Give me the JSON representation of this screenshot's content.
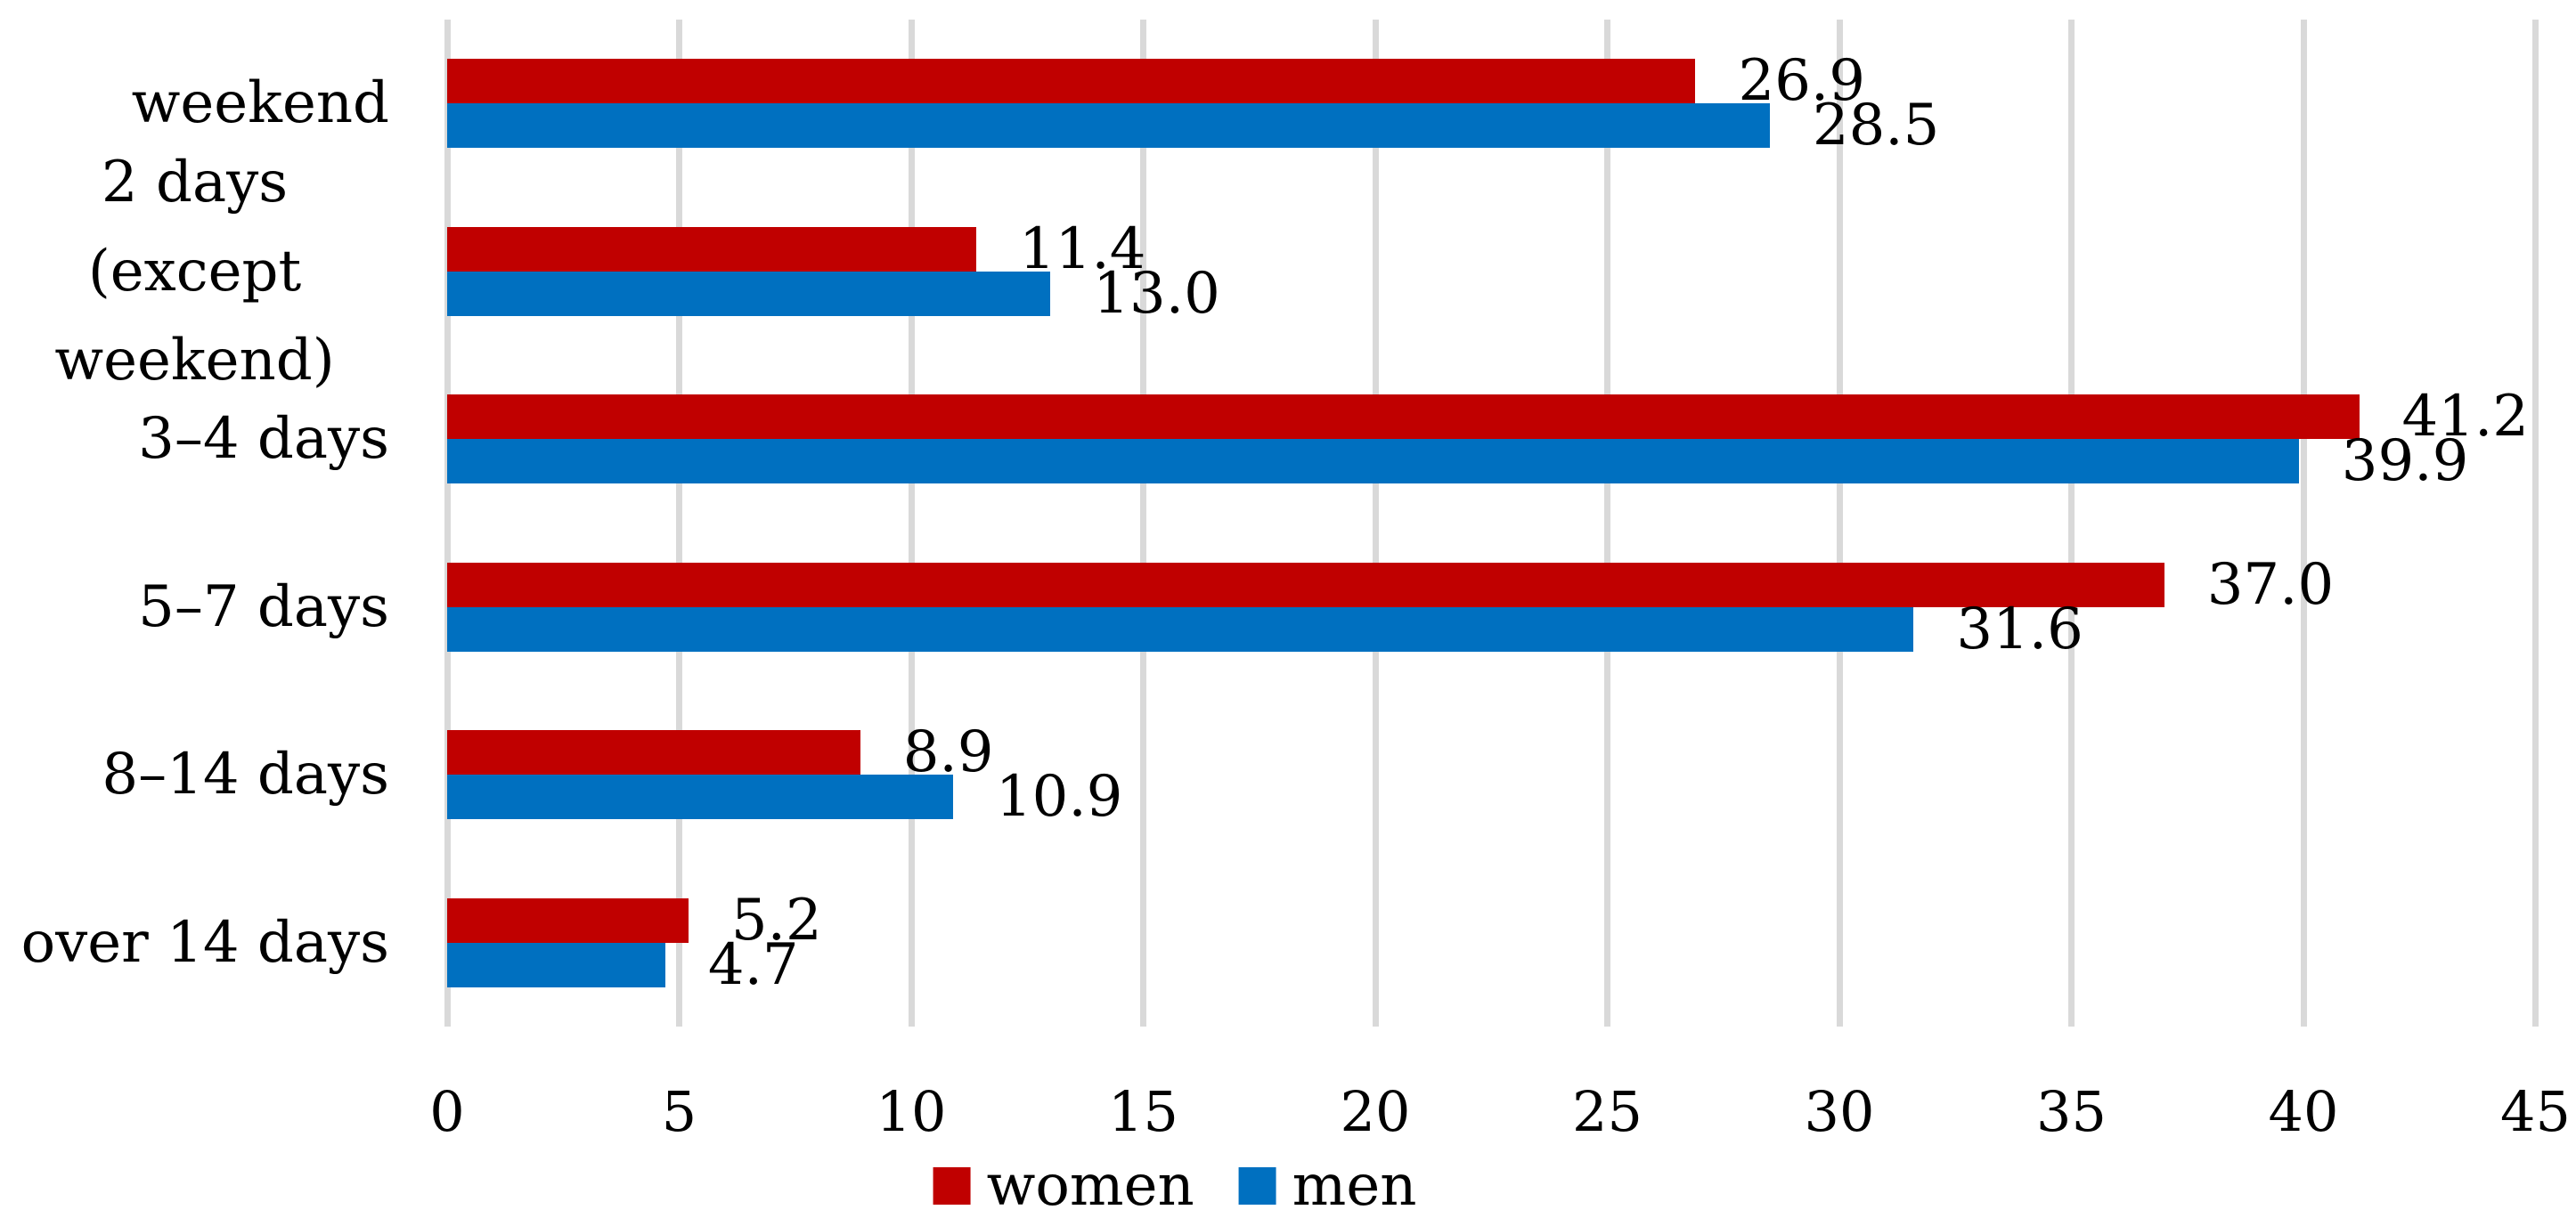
{
  "chart_data": {
    "type": "bar",
    "orientation": "horizontal",
    "title": "",
    "xlabel": "",
    "ylabel": "",
    "categories": [
      "weekend",
      "2 days (except weekend)",
      "3–4 days",
      "5–7 days",
      "8–14 days",
      "over 14 days"
    ],
    "series": [
      {
        "name": "women",
        "color": "#c00000",
        "values": [
          26.9,
          11.4,
          41.2,
          37.0,
          8.9,
          5.2
        ],
        "value_labels": [
          "26.9",
          "11.4",
          "41.2",
          "37.0",
          "8.9",
          "5.2"
        ]
      },
      {
        "name": "men",
        "color": "#0070c0",
        "values": [
          28.5,
          13.0,
          39.9,
          31.6,
          10.9,
          4.7
        ],
        "value_labels": [
          "28.5",
          "13.0",
          "39.9",
          "31.6",
          "10.9",
          "4.7"
        ]
      }
    ],
    "xlim": [
      0,
      45
    ],
    "x_ticks": [
      0,
      5,
      10,
      15,
      20,
      25,
      30,
      35,
      40,
      45
    ],
    "grid": "vertical-gridlines",
    "gridline_color": "#d9d9d9",
    "data_labels": true,
    "legend_position": "bottom",
    "text_color": "#000000",
    "background_color": "#ffffff"
  }
}
